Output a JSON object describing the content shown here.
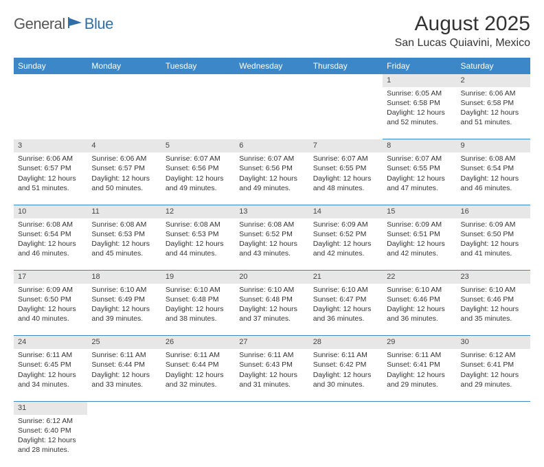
{
  "logo": {
    "part1": "General",
    "part2": "Blue"
  },
  "title": "August 2025",
  "location": "San Lucas Quiavini, Mexico",
  "colors": {
    "header_bg": "#3b87c8",
    "header_fg": "#ffffff",
    "daynum_bg": "#e7e7e7",
    "row_border": "#3b87c8",
    "logo_gray": "#555555",
    "logo_blue": "#2f6fa8"
  },
  "weekdays": [
    "Sunday",
    "Monday",
    "Tuesday",
    "Wednesday",
    "Thursday",
    "Friday",
    "Saturday"
  ],
  "weeks": [
    [
      null,
      null,
      null,
      null,
      null,
      {
        "d": "1",
        "sr": "6:05 AM",
        "ss": "6:58 PM",
        "dl": "12 hours and 52 minutes."
      },
      {
        "d": "2",
        "sr": "6:06 AM",
        "ss": "6:58 PM",
        "dl": "12 hours and 51 minutes."
      }
    ],
    [
      {
        "d": "3",
        "sr": "6:06 AM",
        "ss": "6:57 PM",
        "dl": "12 hours and 51 minutes."
      },
      {
        "d": "4",
        "sr": "6:06 AM",
        "ss": "6:57 PM",
        "dl": "12 hours and 50 minutes."
      },
      {
        "d": "5",
        "sr": "6:07 AM",
        "ss": "6:56 PM",
        "dl": "12 hours and 49 minutes."
      },
      {
        "d": "6",
        "sr": "6:07 AM",
        "ss": "6:56 PM",
        "dl": "12 hours and 49 minutes."
      },
      {
        "d": "7",
        "sr": "6:07 AM",
        "ss": "6:55 PM",
        "dl": "12 hours and 48 minutes."
      },
      {
        "d": "8",
        "sr": "6:07 AM",
        "ss": "6:55 PM",
        "dl": "12 hours and 47 minutes."
      },
      {
        "d": "9",
        "sr": "6:08 AM",
        "ss": "6:54 PM",
        "dl": "12 hours and 46 minutes."
      }
    ],
    [
      {
        "d": "10",
        "sr": "6:08 AM",
        "ss": "6:54 PM",
        "dl": "12 hours and 46 minutes."
      },
      {
        "d": "11",
        "sr": "6:08 AM",
        "ss": "6:53 PM",
        "dl": "12 hours and 45 minutes."
      },
      {
        "d": "12",
        "sr": "6:08 AM",
        "ss": "6:53 PM",
        "dl": "12 hours and 44 minutes."
      },
      {
        "d": "13",
        "sr": "6:08 AM",
        "ss": "6:52 PM",
        "dl": "12 hours and 43 minutes."
      },
      {
        "d": "14",
        "sr": "6:09 AM",
        "ss": "6:52 PM",
        "dl": "12 hours and 42 minutes."
      },
      {
        "d": "15",
        "sr": "6:09 AM",
        "ss": "6:51 PM",
        "dl": "12 hours and 42 minutes."
      },
      {
        "d": "16",
        "sr": "6:09 AM",
        "ss": "6:50 PM",
        "dl": "12 hours and 41 minutes."
      }
    ],
    [
      {
        "d": "17",
        "sr": "6:09 AM",
        "ss": "6:50 PM",
        "dl": "12 hours and 40 minutes."
      },
      {
        "d": "18",
        "sr": "6:10 AM",
        "ss": "6:49 PM",
        "dl": "12 hours and 39 minutes."
      },
      {
        "d": "19",
        "sr": "6:10 AM",
        "ss": "6:48 PM",
        "dl": "12 hours and 38 minutes."
      },
      {
        "d": "20",
        "sr": "6:10 AM",
        "ss": "6:48 PM",
        "dl": "12 hours and 37 minutes."
      },
      {
        "d": "21",
        "sr": "6:10 AM",
        "ss": "6:47 PM",
        "dl": "12 hours and 36 minutes."
      },
      {
        "d": "22",
        "sr": "6:10 AM",
        "ss": "6:46 PM",
        "dl": "12 hours and 36 minutes."
      },
      {
        "d": "23",
        "sr": "6:10 AM",
        "ss": "6:46 PM",
        "dl": "12 hours and 35 minutes."
      }
    ],
    [
      {
        "d": "24",
        "sr": "6:11 AM",
        "ss": "6:45 PM",
        "dl": "12 hours and 34 minutes."
      },
      {
        "d": "25",
        "sr": "6:11 AM",
        "ss": "6:44 PM",
        "dl": "12 hours and 33 minutes."
      },
      {
        "d": "26",
        "sr": "6:11 AM",
        "ss": "6:44 PM",
        "dl": "12 hours and 32 minutes."
      },
      {
        "d": "27",
        "sr": "6:11 AM",
        "ss": "6:43 PM",
        "dl": "12 hours and 31 minutes."
      },
      {
        "d": "28",
        "sr": "6:11 AM",
        "ss": "6:42 PM",
        "dl": "12 hours and 30 minutes."
      },
      {
        "d": "29",
        "sr": "6:11 AM",
        "ss": "6:41 PM",
        "dl": "12 hours and 29 minutes."
      },
      {
        "d": "30",
        "sr": "6:12 AM",
        "ss": "6:41 PM",
        "dl": "12 hours and 29 minutes."
      }
    ],
    [
      {
        "d": "31",
        "sr": "6:12 AM",
        "ss": "6:40 PM",
        "dl": "12 hours and 28 minutes."
      },
      null,
      null,
      null,
      null,
      null,
      null
    ]
  ],
  "labels": {
    "sunrise": "Sunrise:",
    "sunset": "Sunset:",
    "daylight": "Daylight:"
  }
}
